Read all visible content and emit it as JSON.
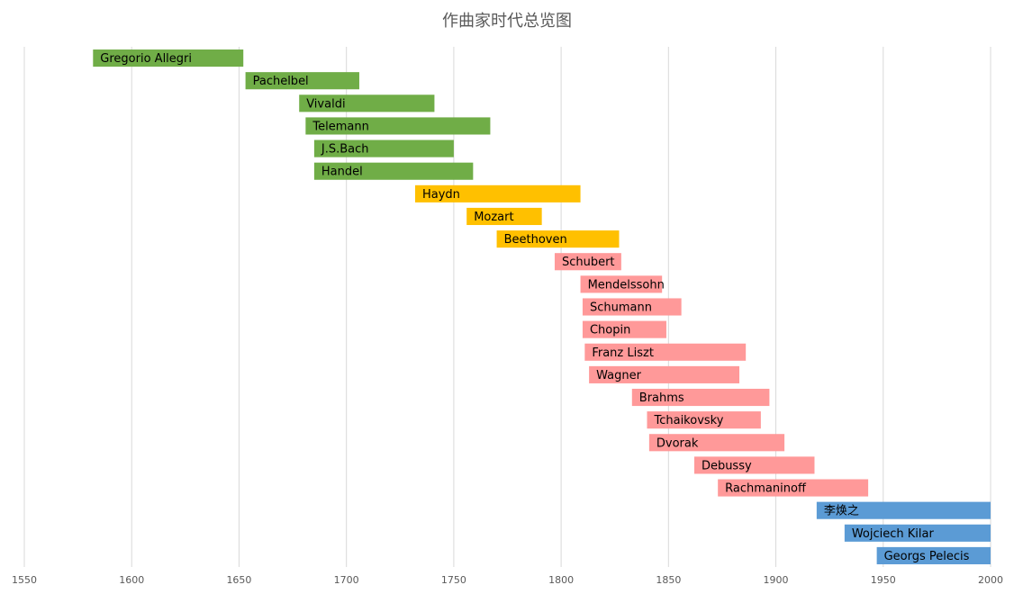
{
  "chart_data": {
    "type": "bar",
    "orientation": "horizontal-range",
    "title": "作曲家时代总览图",
    "xlabel": "",
    "ylabel": "",
    "xlim": [
      1550,
      2000
    ],
    "x_ticks": [
      1550,
      1600,
      1650,
      1700,
      1750,
      1800,
      1850,
      1900,
      1950,
      2000
    ],
    "grid": true,
    "colors": {
      "baroque": "#70ad47",
      "classical": "#ffc000",
      "romantic": "#ff9999",
      "modern": "#5b9bd5"
    },
    "bars": [
      {
        "label": "Gregorio Allegri",
        "start": 1582,
        "end": 1652,
        "group": "baroque"
      },
      {
        "label": "Pachelbel",
        "start": 1653,
        "end": 1706,
        "group": "baroque"
      },
      {
        "label": "Vivaldi",
        "start": 1678,
        "end": 1741,
        "group": "baroque"
      },
      {
        "label": "Telemann",
        "start": 1681,
        "end": 1767,
        "group": "baroque"
      },
      {
        "label": "J.S.Bach",
        "start": 1685,
        "end": 1750,
        "group": "baroque"
      },
      {
        "label": "Handel",
        "start": 1685,
        "end": 1759,
        "group": "baroque"
      },
      {
        "label": "Haydn",
        "start": 1732,
        "end": 1809,
        "group": "classical"
      },
      {
        "label": "Mozart",
        "start": 1756,
        "end": 1791,
        "group": "classical"
      },
      {
        "label": "Beethoven",
        "start": 1770,
        "end": 1827,
        "group": "classical"
      },
      {
        "label": "Schubert",
        "start": 1797,
        "end": 1828,
        "group": "romantic"
      },
      {
        "label": "Mendelssohn",
        "start": 1809,
        "end": 1847,
        "group": "romantic"
      },
      {
        "label": "Schumann",
        "start": 1810,
        "end": 1856,
        "group": "romantic"
      },
      {
        "label": "Chopin",
        "start": 1810,
        "end": 1849,
        "group": "romantic"
      },
      {
        "label": "Franz Liszt",
        "start": 1811,
        "end": 1886,
        "group": "romantic"
      },
      {
        "label": "Wagner",
        "start": 1813,
        "end": 1883,
        "group": "romantic"
      },
      {
        "label": "Brahms",
        "start": 1833,
        "end": 1897,
        "group": "romantic"
      },
      {
        "label": "Tchaikovsky",
        "start": 1840,
        "end": 1893,
        "group": "romantic"
      },
      {
        "label": "Dvorak",
        "start": 1841,
        "end": 1904,
        "group": "romantic"
      },
      {
        "label": "Debussy",
        "start": 1862,
        "end": 1918,
        "group": "romantic"
      },
      {
        "label": "Rachmaninoff",
        "start": 1873,
        "end": 1943,
        "group": "romantic"
      },
      {
        "label": "李焕之",
        "start": 1919,
        "end": 2000,
        "group": "modern"
      },
      {
        "label": "Wojciech Kilar",
        "start": 1932,
        "end": 2000,
        "group": "modern"
      },
      {
        "label": "Georgs Pelecis",
        "start": 1947,
        "end": 2000,
        "group": "modern"
      }
    ]
  }
}
